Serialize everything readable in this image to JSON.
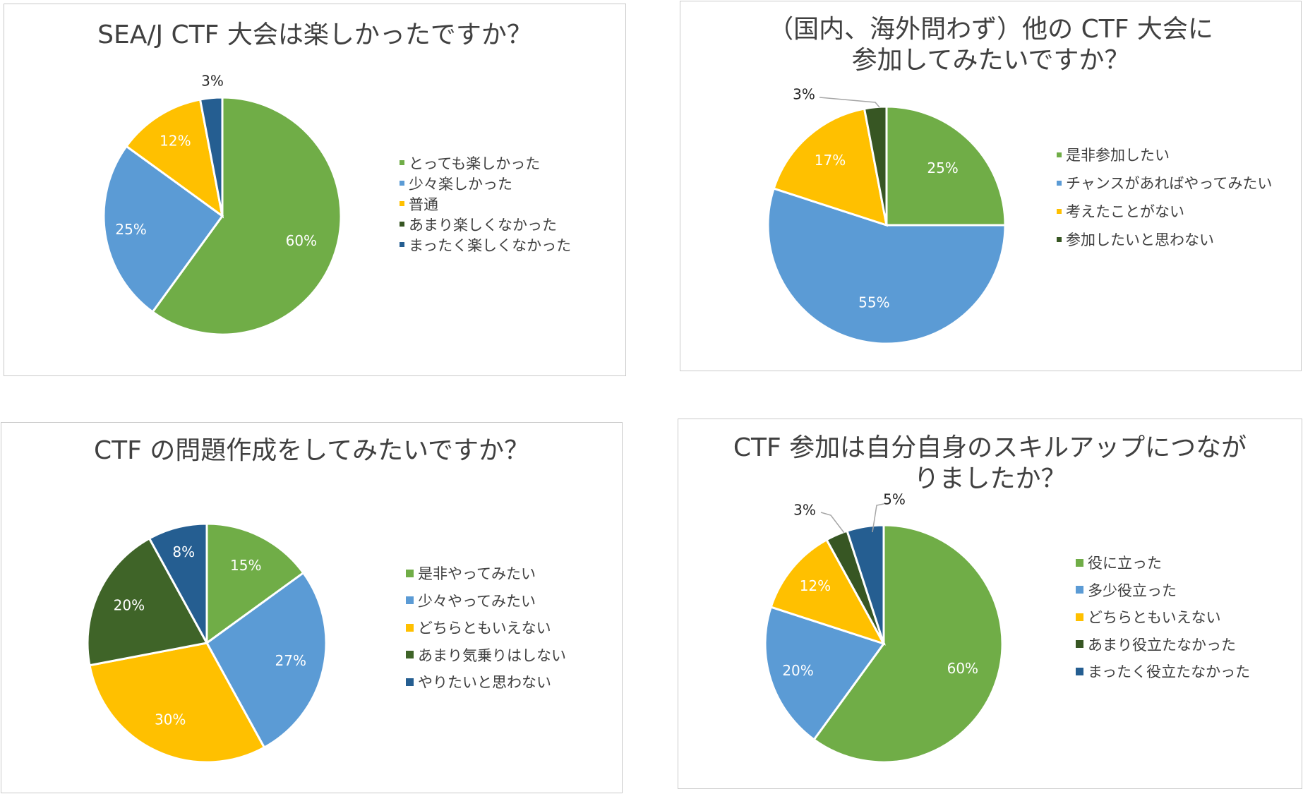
{
  "chart_data": [
    {
      "type": "pie",
      "title": "SEA/J CTF 大会は楽しかったですか？",
      "categories": [
        "とっても楽しかった",
        "少々楽しかった",
        "普通",
        "あまり楽しくなかった",
        "まったく楽しくなかった"
      ],
      "values": [
        60,
        25,
        12,
        0,
        3
      ],
      "labels": [
        "60%",
        "25%",
        "12%",
        "",
        "3%"
      ],
      "colors": [
        "#70AD47",
        "#5B9BD5",
        "#FFC000",
        "#375623",
        "#255E91"
      ],
      "legend_position": "right"
    },
    {
      "type": "pie",
      "title": "（国内、海外問わず）他の CTF 大会に\n参加してみたいですか？",
      "categories": [
        "是非参加したい",
        "チャンスがあればやってみたい",
        "考えたことがない",
        "参加したいと思わない"
      ],
      "values": [
        25,
        55,
        17,
        3
      ],
      "labels": [
        "25%",
        "55%",
        "17%",
        "3%"
      ],
      "colors": [
        "#70AD47",
        "#5B9BD5",
        "#FFC000",
        "#375623"
      ],
      "legend_position": "right"
    },
    {
      "type": "pie",
      "title": "CTF の問題作成をしてみたいですか？",
      "categories": [
        "是非やってみたい",
        "少々やってみたい",
        "どちらともいえない",
        "あまり気乗りはしない",
        "やりたいと思わない"
      ],
      "values": [
        15,
        27,
        30,
        20,
        8
      ],
      "labels": [
        "15%",
        "27%",
        "30%",
        "20%",
        "8%"
      ],
      "colors": [
        "#70AD47",
        "#5B9BD5",
        "#FFC000",
        "#3F6428",
        "#255E91"
      ],
      "legend_position": "right"
    },
    {
      "type": "pie",
      "title": "CTF 参加は自分自身のスキルアップにつなが\nりましたか？",
      "categories": [
        "役に立った",
        "多少役立った",
        "どちらともいえない",
        "あまり役立たなかった",
        "まったく役立たなかった"
      ],
      "values": [
        60,
        20,
        12,
        3,
        5
      ],
      "labels": [
        "60%",
        "20%",
        "12%",
        "3%",
        "5%"
      ],
      "colors": [
        "#70AD47",
        "#5B9BD5",
        "#FFC000",
        "#375623",
        "#255E91"
      ],
      "legend_position": "right"
    }
  ]
}
